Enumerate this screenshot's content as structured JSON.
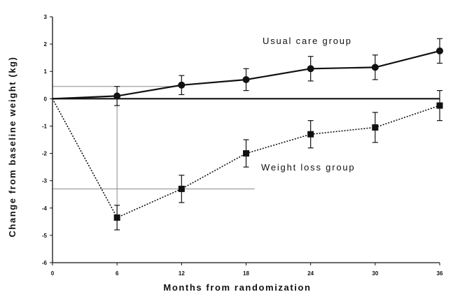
{
  "chart_data": {
    "type": "line",
    "title": "",
    "xlabel": "Months from randomization",
    "ylabel": "Change from baseline weight (kg)",
    "xlim": [
      0,
      36
    ],
    "ylim": [
      -6,
      3
    ],
    "x_ticks": [
      0,
      6,
      12,
      18,
      24,
      30,
      36
    ],
    "y_ticks": [
      3,
      2,
      1,
      0,
      -1,
      -2,
      -3,
      -4,
      -5,
      -6
    ],
    "x_tick_labels": [
      "0",
      "6",
      "12",
      "18",
      "24",
      "30",
      "36"
    ],
    "y_tick_labels": [
      "3",
      "2",
      "1",
      "0",
      "-1",
      "-2",
      "-3",
      "-4",
      "-5",
      "-6"
    ],
    "grid": false,
    "legend": "none (series labelled directly on the plot)",
    "series": [
      {
        "name": "Usual care group",
        "marker": "circle",
        "line_style": "solid",
        "x": [
          0,
          6,
          12,
          18,
          24,
          30,
          36
        ],
        "y": [
          0,
          0.1,
          0.5,
          0.7,
          1.1,
          1.15,
          1.75
        ],
        "err": [
          0,
          0.35,
          0.35,
          0.4,
          0.45,
          0.45,
          0.45
        ]
      },
      {
        "name": "Weight loss group",
        "marker": "square",
        "line_style": "dotted",
        "x": [
          0,
          6,
          12,
          18,
          24,
          30,
          36
        ],
        "y": [
          0,
          -4.35,
          -3.3,
          -2.0,
          -1.3,
          -1.05,
          -0.25
        ],
        "err": [
          0,
          0.45,
          0.5,
          0.5,
          0.5,
          0.55,
          0.55
        ]
      }
    ]
  },
  "colors": {
    "ink": "#111111",
    "reference_line": "#8a8a8a",
    "background": "#ffffff"
  }
}
